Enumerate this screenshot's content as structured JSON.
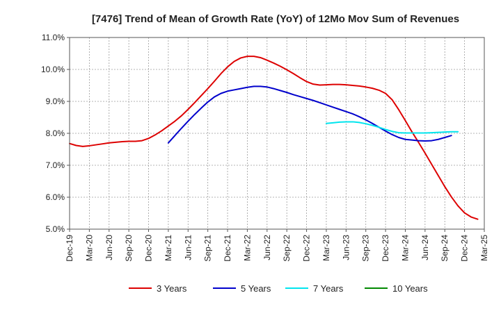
{
  "chart_data": {
    "type": "line",
    "title": "[7476]  Trend of Mean of Growth Rate (YoY) of 12Mo Mov Sum of Revenues",
    "xlabel": "",
    "ylabel": "",
    "ylim": [
      5.0,
      11.0
    ],
    "y_ticks": [
      5.0,
      6.0,
      7.0,
      8.0,
      9.0,
      10.0,
      11.0
    ],
    "y_tick_labels": [
      "5.0%",
      "6.0%",
      "7.0%",
      "8.0%",
      "9.0%",
      "10.0%",
      "11.0%"
    ],
    "x_ticks": [
      "Dec-19",
      "Mar-20",
      "Jun-20",
      "Sep-20",
      "Dec-20",
      "Mar-21",
      "Jun-21",
      "Sep-21",
      "Dec-21",
      "Mar-22",
      "Jun-22",
      "Sep-22",
      "Dec-22",
      "Mar-23",
      "Jun-23",
      "Sep-23",
      "Dec-23",
      "Mar-24",
      "Jun-24",
      "Sep-24",
      "Dec-24",
      "Mar-25"
    ],
    "grid": true,
    "legend_position": "bottom",
    "series": [
      {
        "name": "3 Years",
        "color": "#dd0000",
        "start_month": 0,
        "values": [
          7.68,
          7.62,
          7.59,
          7.61,
          7.64,
          7.67,
          7.7,
          7.72,
          7.74,
          7.75,
          7.75,
          7.77,
          7.84,
          7.95,
          8.08,
          8.23,
          8.38,
          8.55,
          8.75,
          8.96,
          9.18,
          9.4,
          9.63,
          9.87,
          10.08,
          10.25,
          10.36,
          10.41,
          10.41,
          10.37,
          10.29,
          10.2,
          10.1,
          9.99,
          9.87,
          9.74,
          9.62,
          9.54,
          9.51,
          9.52,
          9.53,
          9.53,
          9.52,
          9.5,
          9.48,
          9.45,
          9.41,
          9.35,
          9.25,
          9.05,
          8.74,
          8.4,
          8.05,
          7.72,
          7.38,
          7.03,
          6.68,
          6.33,
          6.01,
          5.73,
          5.51,
          5.38,
          5.31
        ]
      },
      {
        "name": "5 Years",
        "color": "#0000cc",
        "start_month": 15,
        "values": [
          7.7,
          7.93,
          8.16,
          8.38,
          8.59,
          8.79,
          8.98,
          9.14,
          9.25,
          9.32,
          9.36,
          9.4,
          9.44,
          9.47,
          9.47,
          9.45,
          9.4,
          9.34,
          9.28,
          9.21,
          9.15,
          9.09,
          9.03,
          8.96,
          8.89,
          8.82,
          8.75,
          8.68,
          8.61,
          8.52,
          8.42,
          8.31,
          8.19,
          8.07,
          7.96,
          7.87,
          7.81,
          7.79,
          7.77,
          7.76,
          7.77,
          7.81,
          7.87,
          7.93
        ]
      },
      {
        "name": "7 Years",
        "color": "#00e5ee",
        "start_month": 39,
        "values": [
          8.31,
          8.33,
          8.35,
          8.36,
          8.36,
          8.34,
          8.3,
          8.25,
          8.19,
          8.12,
          8.06,
          8.02,
          8.01,
          8.01,
          8.01,
          8.01,
          8.02,
          8.03,
          8.04,
          8.05,
          8.05
        ]
      },
      {
        "name": "10 Years",
        "color": "#008800",
        "start_month": 0,
        "values": []
      }
    ]
  }
}
